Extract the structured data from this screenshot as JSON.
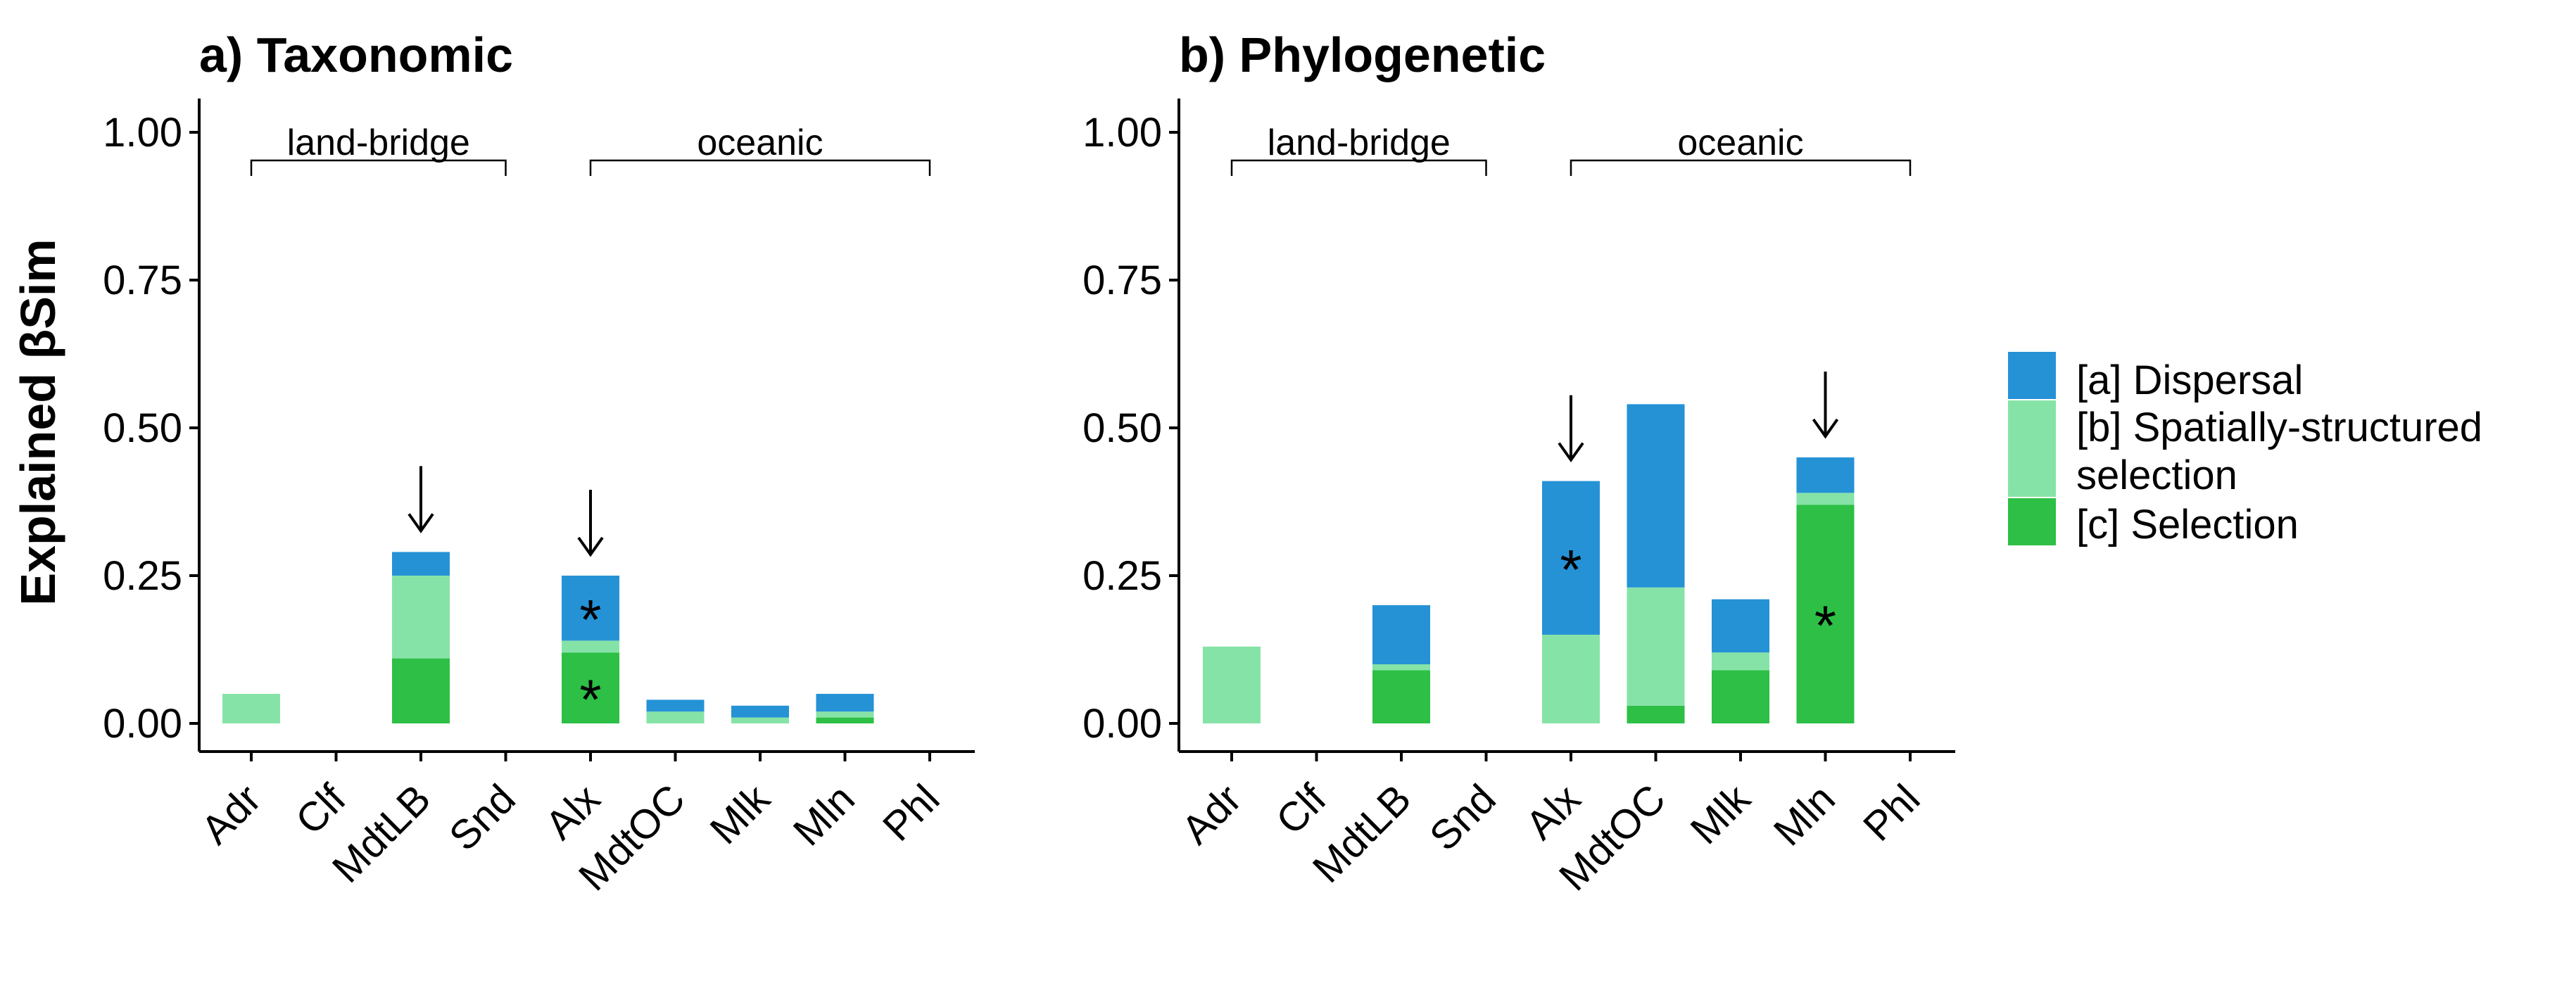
{
  "colors": {
    "dispersal": "#2592D6",
    "spatial": "#86E3A7",
    "selection": "#2DBF46"
  },
  "ylabel": "Explained βSim",
  "ytick_labels": [
    "0.00",
    "0.25",
    "0.50",
    "0.75",
    "1.00"
  ],
  "legend": {
    "items": [
      {
        "key": "dispersal",
        "label": "[a] Dispersal"
      },
      {
        "key": "spatial",
        "label": "[b] Spatially-structured",
        "label2": "selection"
      },
      {
        "key": "selection",
        "label": "[c] Selection"
      }
    ]
  },
  "chart_data": [
    {
      "type": "bar",
      "stacked": true,
      "title": "a) Taxonomic",
      "ylabel": "Explained βSim",
      "ylim": [
        0,
        1
      ],
      "categories": [
        "Adr",
        "Clf",
        "MdtLB",
        "Snd",
        "Alx",
        "MdtOC",
        "Mlk",
        "Mln",
        "Phl"
      ],
      "series": [
        {
          "name": "[c] Selection",
          "values": [
            0,
            0,
            0.11,
            0,
            0.12,
            0,
            0,
            0.01,
            0
          ]
        },
        {
          "name": "[b] Spatially-structured selection",
          "values": [
            0.05,
            0,
            0.14,
            0,
            0.02,
            0.02,
            0.01,
            0.01,
            0
          ]
        },
        {
          "name": "[a] Dispersal",
          "values": [
            0,
            0,
            0.04,
            0,
            0.11,
            0.02,
            0.02,
            0.03,
            0
          ]
        }
      ],
      "groups": [
        {
          "label": "land-bridge",
          "from": "Adr",
          "to": "Snd"
        },
        {
          "label": "oceanic",
          "from": "Alx",
          "to": "Phl"
        }
      ],
      "arrows": [
        "MdtLB",
        "Alx"
      ],
      "stars": [
        {
          "category": "Alx",
          "series": "[a] Dispersal",
          "label": "*"
        },
        {
          "category": "Alx",
          "series": "[c] Selection",
          "label": "*"
        }
      ]
    },
    {
      "type": "bar",
      "stacked": true,
      "title": "b) Phylogenetic",
      "ylim": [
        0,
        1
      ],
      "categories": [
        "Adr",
        "Clf",
        "MdtLB",
        "Snd",
        "Alx",
        "MdtOC",
        "Mlk",
        "Mln",
        "Phl"
      ],
      "series": [
        {
          "name": "[c] Selection",
          "values": [
            0,
            0,
            0.09,
            0,
            0,
            0.03,
            0.09,
            0.37,
            0
          ]
        },
        {
          "name": "[b] Spatially-structured selection",
          "values": [
            0.13,
            0,
            0.01,
            0,
            0.15,
            0.2,
            0.03,
            0.02,
            0
          ]
        },
        {
          "name": "[a] Dispersal",
          "values": [
            0,
            0,
            0.1,
            0,
            0.26,
            0.31,
            0.09,
            0.06,
            0
          ]
        }
      ],
      "groups": [
        {
          "label": "land-bridge",
          "from": "Adr",
          "to": "Snd"
        },
        {
          "label": "oceanic",
          "from": "Alx",
          "to": "Phl"
        }
      ],
      "arrows": [
        "Alx",
        "Mln"
      ],
      "stars": [
        {
          "category": "Alx",
          "series": "[a] Dispersal",
          "label": "*"
        },
        {
          "category": "Mln",
          "series": "[c] Selection",
          "label": "*"
        }
      ]
    }
  ]
}
